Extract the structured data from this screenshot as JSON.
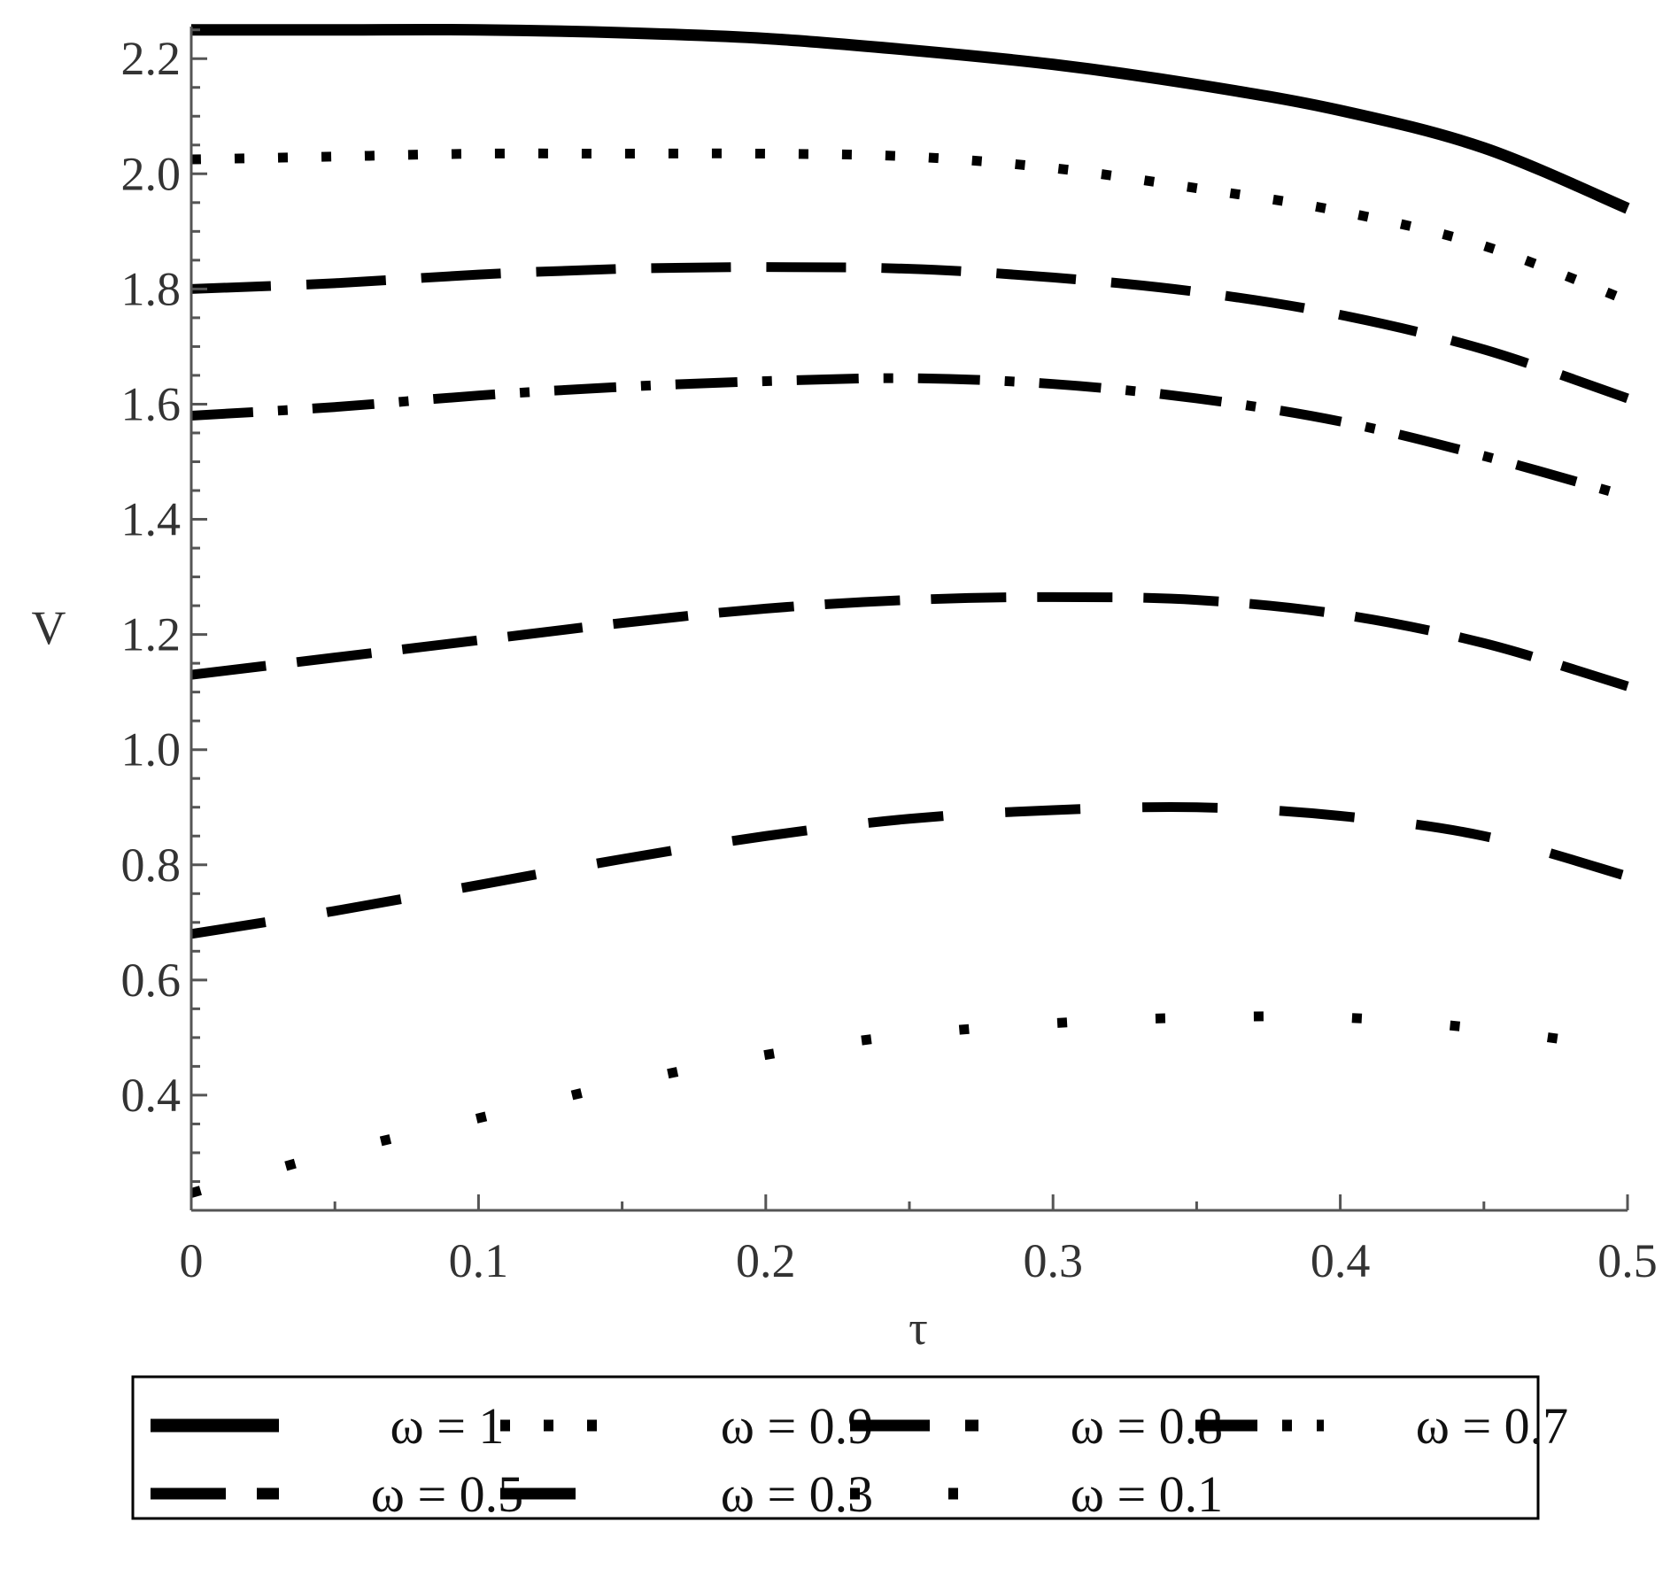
{
  "chart_data": {
    "type": "line",
    "xlabel": "τ",
    "ylabel": "V",
    "xlim": [
      0,
      0.5
    ],
    "ylim": [
      0.2,
      2.25
    ],
    "xticks": [
      0,
      0.1,
      0.2,
      0.3,
      0.4,
      0.5
    ],
    "xtick_labels": [
      "0",
      "0.1",
      "0.2",
      "0.3",
      "0.4",
      "0.5"
    ],
    "yticks": [
      0.4,
      0.6,
      0.8,
      1.0,
      1.2,
      1.4,
      1.6,
      1.8,
      2.0,
      2.2
    ],
    "ytick_labels": [
      "0.4",
      "0.6",
      "0.8",
      "1.0",
      "1.2",
      "1.4",
      "1.6",
      "1.8",
      "2.0",
      "2.2"
    ],
    "grid": false,
    "legend_position": "bottom",
    "x": [
      0,
      0.05,
      0.1,
      0.15,
      0.2,
      0.25,
      0.3,
      0.35,
      0.4,
      0.45,
      0.5
    ],
    "series": [
      {
        "name": "ω = 1",
        "style": "solid",
        "color": "#000000",
        "values": [
          2.25,
          2.25,
          2.25,
          2.245,
          2.235,
          2.215,
          2.19,
          2.155,
          2.11,
          2.045,
          1.94
        ]
      },
      {
        "name": "ω = 0.9",
        "style": "dot",
        "color": "#000000",
        "values": [
          2.025,
          2.03,
          2.035,
          2.035,
          2.035,
          2.03,
          2.01,
          1.975,
          1.935,
          1.875,
          1.78
        ]
      },
      {
        "name": "ω = 0.8",
        "style": "longdash",
        "color": "#000000",
        "values": [
          1.8,
          1.81,
          1.825,
          1.835,
          1.838,
          1.835,
          1.82,
          1.795,
          1.755,
          1.695,
          1.61
        ]
      },
      {
        "name": "ω = 0.7",
        "style": "dashdot",
        "color": "#000000",
        "values": [
          1.58,
          1.595,
          1.615,
          1.63,
          1.64,
          1.645,
          1.635,
          1.61,
          1.57,
          1.51,
          1.44
        ]
      },
      {
        "name": "ω = 0.5",
        "style": "dash",
        "color": "#000000",
        "values": [
          1.13,
          1.16,
          1.19,
          1.22,
          1.245,
          1.26,
          1.265,
          1.26,
          1.235,
          1.185,
          1.11
        ]
      },
      {
        "name": "ω = 0.3",
        "style": "longdash2",
        "color": "#000000",
        "values": [
          0.68,
          0.72,
          0.765,
          0.81,
          0.85,
          0.88,
          0.895,
          0.9,
          0.885,
          0.85,
          0.78
        ]
      },
      {
        "name": "ω = 0.1",
        "style": "sparsedot",
        "color": "#000000",
        "values": [
          0.23,
          0.3,
          0.36,
          0.42,
          0.47,
          0.505,
          0.525,
          0.535,
          0.535,
          0.515,
          0.48
        ]
      }
    ]
  }
}
